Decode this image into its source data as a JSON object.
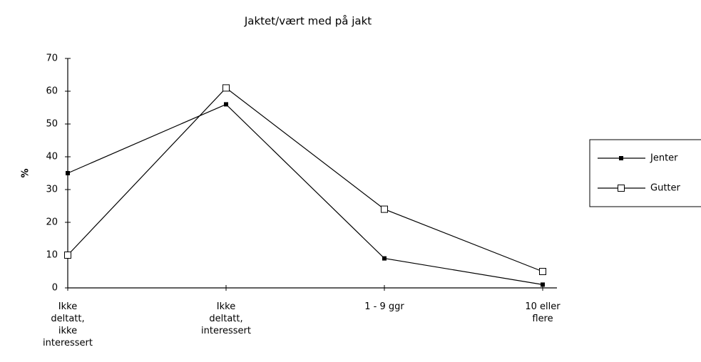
{
  "chart_data": {
    "type": "line",
    "title": "Jaktet/vært med på jakt",
    "y_label": "%",
    "categories": [
      "Ikke deltatt, ikke interessert",
      "Ikke deltatt, interessert",
      "1 - 9 ggr",
      "10 eller flere"
    ],
    "series": [
      {
        "name": "Jenter",
        "color": "#000000",
        "marker": "filled",
        "values": [
          35,
          56,
          9,
          1
        ]
      },
      {
        "name": "Gutter",
        "color": "#000000",
        "marker": "open",
        "values": [
          10,
          61,
          24,
          5
        ]
      }
    ],
    "ylim": [
      0,
      70
    ],
    "yticks": [
      0,
      10,
      20,
      30,
      40,
      50,
      60,
      70
    ],
    "grid": false,
    "legend": "right"
  }
}
